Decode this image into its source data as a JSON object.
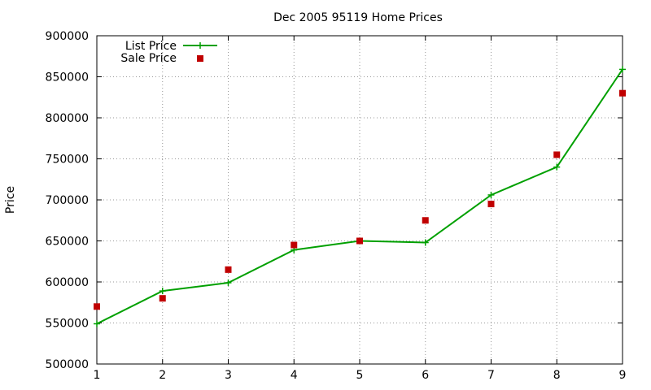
{
  "chart_data": {
    "type": "line",
    "title": "Dec 2005 95119 Home Prices",
    "xlabel": "",
    "ylabel": "Price",
    "xlim": [
      1,
      9
    ],
    "ylim": [
      500000,
      900000
    ],
    "xticks": [
      "1",
      "2",
      "3",
      "4",
      "5",
      "6",
      "7",
      "8",
      "9"
    ],
    "yticks": [
      "500000",
      "550000",
      "600000",
      "650000",
      "700000",
      "750000",
      "800000",
      "850000",
      "900000"
    ],
    "grid": true,
    "legend_position": "top-left",
    "series": [
      {
        "name": "List Price",
        "style": "line-with-plus-markers",
        "color": "#00a000",
        "x": [
          1,
          2,
          3,
          4,
          5,
          6,
          7,
          8,
          9
        ],
        "y": [
          549000,
          589000,
          599000,
          639000,
          650000,
          648000,
          706000,
          740000,
          859000
        ]
      },
      {
        "name": "Sale Price",
        "style": "square-markers",
        "color": "#c00000",
        "x": [
          1,
          2,
          3,
          4,
          5,
          6,
          7,
          8,
          9
        ],
        "y": [
          570000,
          580000,
          615000,
          645000,
          650000,
          675000,
          695000,
          755000,
          830000
        ]
      }
    ]
  }
}
